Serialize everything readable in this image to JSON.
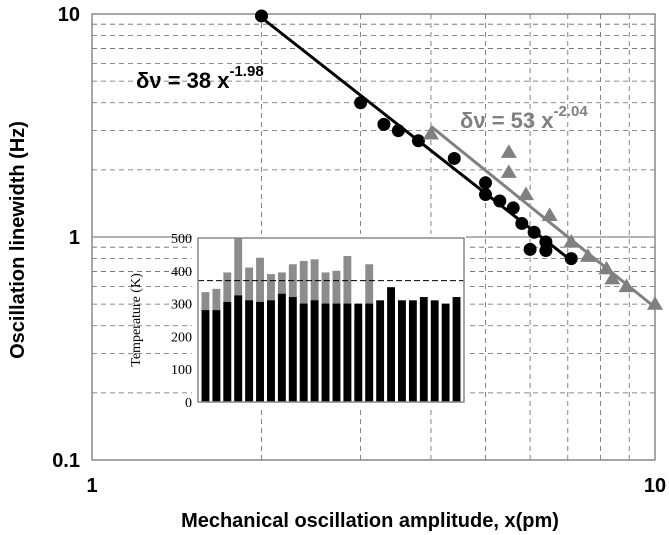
{
  "chart_data": [
    {
      "type": "scatter",
      "xscale": "log",
      "yscale": "log",
      "xlim": [
        1,
        10
      ],
      "ylim": [
        0.1,
        10
      ],
      "xlabel": "Mechanical oscillation amplitude, x(pm)",
      "ylabel": "Oscillation linewidth (Hz)",
      "x_ticks": [
        "1",
        "10"
      ],
      "y_ticks": [
        "0.1",
        "1",
        "10"
      ],
      "grid": true,
      "colors": {
        "black_series": "#000000",
        "gray_series": "#808080"
      },
      "series": [
        {
          "marker": "circle",
          "color": "#000000",
          "points": [
            [
              2.0,
              9.8
            ],
            [
              3.0,
              4.0
            ],
            [
              3.3,
              3.2
            ],
            [
              3.5,
              3.0
            ],
            [
              3.8,
              2.7
            ],
            [
              4.4,
              2.25
            ],
            [
              5.0,
              1.75
            ],
            [
              5.0,
              1.55
            ],
            [
              5.3,
              1.45
            ],
            [
              5.6,
              1.35
            ],
            [
              5.8,
              1.15
            ],
            [
              6.1,
              1.05
            ],
            [
              6.0,
              0.88
            ],
            [
              6.4,
              0.87
            ],
            [
              6.4,
              0.95
            ],
            [
              7.1,
              0.8
            ]
          ],
          "fit": {
            "label_prefix": "δν = 38 x",
            "label_exp": "-1.98",
            "a": 38,
            "b": -1.98,
            "x_range": [
              2.0,
              7.1
            ]
          }
        },
        {
          "marker": "triangle",
          "color": "#808080",
          "points": [
            [
              4.0,
              2.9
            ],
            [
              5.5,
              2.4
            ],
            [
              5.5,
              1.95
            ],
            [
              5.9,
              1.55
            ],
            [
              6.5,
              1.25
            ],
            [
              7.1,
              0.95
            ],
            [
              7.6,
              0.82
            ],
            [
              8.2,
              0.72
            ],
            [
              8.4,
              0.65
            ],
            [
              8.9,
              0.6
            ],
            [
              10.0,
              0.5
            ]
          ],
          "fit": {
            "label_prefix": "δν = 53 x",
            "label_exp": "-2.04",
            "a": 53,
            "b": -2.04,
            "x_range": [
              4.0,
              10.0
            ]
          }
        }
      ]
    },
    {
      "type": "bar",
      "ylabel": "Temperature (K)",
      "ylim": [
        0,
        500
      ],
      "y_ticks": [
        "0",
        "100",
        "200",
        "300",
        "400",
        "500"
      ],
      "reference_line": 370,
      "colors": {
        "gray": "#8c8c8c",
        "black": "#000000"
      },
      "gray_values": [
        335,
        345,
        395,
        500,
        410,
        440,
        390,
        395,
        420,
        430,
        435,
        395,
        400,
        445,
        250,
        420
      ],
      "black_values": [
        280,
        280,
        305,
        325,
        310,
        305,
        310,
        330,
        320,
        300,
        310,
        300,
        300,
        300,
        300,
        300,
        310,
        350,
        310,
        310,
        320,
        310,
        300,
        320
      ]
    }
  ]
}
